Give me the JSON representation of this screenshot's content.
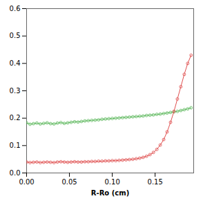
{
  "chart_data": {
    "type": "line",
    "xlabel": "R-Ro (cm)",
    "xlim": [
      0.0,
      0.195
    ],
    "ylim": [
      0.0,
      0.6
    ],
    "xticks": [
      {
        "value": 0,
        "label": "0.00"
      },
      0.05,
      {
        "value": 0.1,
        "label": "0.10"
      },
      0.15
    ],
    "yticks": [
      {
        "value": 0,
        "label": "0.0"
      },
      0.1,
      0.2,
      0.3,
      0.4,
      0.5,
      0.6
    ],
    "grid": false,
    "x": [
      0.0,
      0.004,
      0.008,
      0.012,
      0.016,
      0.02,
      0.024,
      0.028,
      0.032,
      0.036,
      0.04,
      0.044,
      0.048,
      0.052,
      0.056,
      0.06,
      0.064,
      0.068,
      0.072,
      0.076,
      0.08,
      0.084,
      0.088,
      0.092,
      0.096,
      0.1,
      0.104,
      0.108,
      0.112,
      0.116,
      0.12,
      0.124,
      0.128,
      0.132,
      0.136,
      0.14,
      0.144,
      0.148,
      0.152,
      0.156,
      0.16,
      0.164,
      0.168,
      0.172,
      0.176,
      0.18,
      0.184,
      0.188,
      0.192
    ],
    "series": [
      {
        "color": "#5cb85c",
        "marker": "circle",
        "values": [
          0.183,
          0.178,
          0.18,
          0.182,
          0.179,
          0.181,
          0.183,
          0.18,
          0.179,
          0.182,
          0.184,
          0.181,
          0.183,
          0.185,
          0.187,
          0.186,
          0.188,
          0.19,
          0.191,
          0.192,
          0.193,
          0.194,
          0.196,
          0.197,
          0.198,
          0.199,
          0.2,
          0.201,
          0.202,
          0.203,
          0.204,
          0.205,
          0.206,
          0.207,
          0.208,
          0.21,
          0.211,
          0.212,
          0.214,
          0.215,
          0.217,
          0.219,
          0.221,
          0.223,
          0.225,
          0.228,
          0.231,
          0.234,
          0.238
        ]
      },
      {
        "color": "#e05050",
        "marker": "circle",
        "values": [
          0.04,
          0.038,
          0.039,
          0.04,
          0.038,
          0.039,
          0.04,
          0.039,
          0.038,
          0.04,
          0.041,
          0.04,
          0.039,
          0.04,
          0.041,
          0.04,
          0.04,
          0.041,
          0.041,
          0.042,
          0.042,
          0.043,
          0.043,
          0.044,
          0.044,
          0.045,
          0.045,
          0.046,
          0.047,
          0.048,
          0.049,
          0.05,
          0.052,
          0.054,
          0.057,
          0.061,
          0.067,
          0.075,
          0.086,
          0.102,
          0.122,
          0.15,
          0.185,
          0.225,
          0.27,
          0.315,
          0.36,
          0.4,
          0.43
        ]
      }
    ]
  }
}
